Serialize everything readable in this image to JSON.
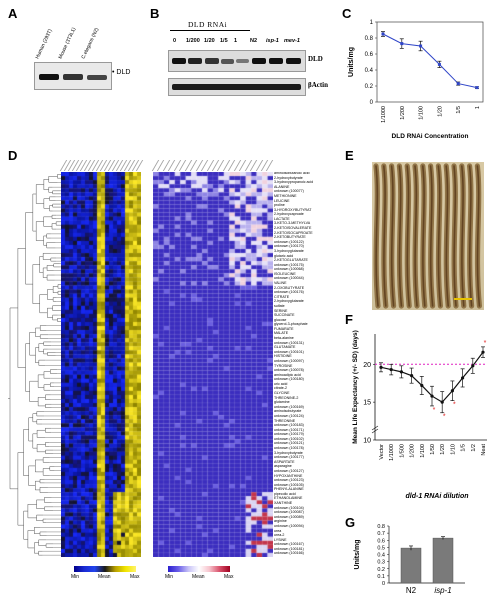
{
  "panels": {
    "a": "A",
    "b": "B",
    "c": "C",
    "d": "D",
    "e": "E",
    "f": "F",
    "g": "G"
  },
  "panel_a": {
    "lanes": [
      "Human (293T)",
      "Mouse (3T3L1)",
      "C.elegans (N2)"
    ],
    "band_label": "• DLD"
  },
  "panel_b": {
    "header": "DLD RNAi",
    "lanes": [
      "0",
      "1/200",
      "1/20",
      "1/5",
      "1",
      "N2",
      "isp-1",
      "mev-1"
    ],
    "labels": {
      "top": "DLD",
      "bottom": "βActin"
    }
  },
  "panel_e": {
    "scale_label": "—"
  },
  "panel_d": {
    "legend_left": {
      "min": "Min",
      "mean": "Mean",
      "max": "Max"
    },
    "legend_right": {
      "min": "Min",
      "mean": "Mean",
      "max": "Max"
    },
    "metabolites": [
      "aminoisobutanoic acid",
      "2-hydroxybutyrate",
      "3-hydroxypropanoic acid",
      "ALANINE",
      "unknown (100077)",
      "METHIONINE",
      "LEUCINE",
      "proline",
      "3-HYDROXYBUTYRAT",
      "2-hydroxycaproate",
      "LACTATE",
      "3-KETO-3-METHYLVA",
      "2-KETOISOVALERATE",
      "2-KETOISOCAPROATE",
      "2-KETOBUTYRATE",
      "unknown (100122)",
      "unknown (100170)",
      "3-hydroxyglutarate",
      "glutaric acid",
      "2-KETOGLUTARATE",
      "unknown (100175)",
      "unknown (100068)",
      "ISOLEUCINE",
      "unknown (100044)",
      "VALINE",
      "2-OXOBUTYRATE",
      "unknown (100176)",
      "CITRATE",
      "2-hydroxyglutarate",
      "sulfate",
      "SERINE",
      "SUCCINATE",
      "glucose",
      "glycerol-3-phosphate",
      "FUMARATE",
      "MALATE",
      "beta-alanine",
      "unknown (100131)",
      "GLUTAMATE",
      "unknown (100101)",
      "HISTIDINE",
      "unknown (100097)",
      "TYROSINE",
      "unknown (100078)",
      "aminoadipic acid",
      "unknown (100180)",
      "uric acid",
      "citrate-2",
      "GLYCINE",
      "THREONINE-2",
      "glutamine",
      "unknown (100169)",
      "aminoisobutyrate",
      "unknown (100124)",
      "THREONINE",
      "unknown (100183)",
      "unknown (100171)",
      "unknown (100179)",
      "unknown (100102)",
      "unknown (100121)",
      "unknown (100178)",
      "3-hydroxybutyrate",
      "unknown (100177)",
      "ASPARTATE",
      "asparagine",
      "unknown (100127)",
      "HYPOXANTHINE",
      "unknown (100123)",
      "unknown (100105)",
      "PHENYLALANINE",
      "pipecolic acid",
      "ETHANOLAMINE",
      "XANTHINE",
      "unknown (100104)",
      "unknown (100087)",
      "unknown (100089)",
      "arginine",
      "unknown (100094)",
      "urea",
      "urea-2",
      "LYSINE",
      "unknown (100167)",
      "unknown (100181)",
      "unknown (100166)"
    ]
  },
  "chart_data": [
    {
      "panel": "C",
      "type": "line",
      "ylabel": "Units/mg",
      "xlabel": "DLD RNAi Concentration",
      "categories": [
        "1/1000",
        "1/200",
        "1/100",
        "1/20",
        "1/5",
        "1"
      ],
      "values": [
        0.85,
        0.73,
        0.7,
        0.47,
        0.23,
        0.18
      ],
      "errors": [
        0.03,
        0.06,
        0.06,
        0.04,
        0.02,
        0.01
      ],
      "ylim": [
        0,
        1
      ],
      "yticks": [
        "0",
        "0.2",
        "0.4",
        "0.6",
        "0.8",
        "1"
      ],
      "color": "#2f45c8"
    },
    {
      "panel": "F",
      "type": "line",
      "ylabel": "Mean Life Expectancy (+/- SD) (days)",
      "xlabel": "dld-1 RNAi dilution",
      "categories": [
        "Vector",
        "1/1000",
        "1/500",
        "1/200",
        "1/100",
        "1/50",
        "1/20",
        "1/10",
        "1/5",
        "1/2",
        "Neat"
      ],
      "values": [
        19.6,
        19.3,
        19.0,
        18.5,
        17.2,
        15.8,
        15.0,
        16.5,
        18.2,
        19.8,
        21.6
      ],
      "errors": [
        0.6,
        0.7,
        0.8,
        1.0,
        1.2,
        1.3,
        1.4,
        1.3,
        1.2,
        1.0,
        0.7
      ],
      "ylim": [
        10,
        24
      ],
      "yticks": [
        "10",
        "15",
        "20"
      ],
      "reference_line": 20.0,
      "significant": [
        "1/50",
        "1/20",
        "1/10",
        "Neat"
      ],
      "color": "#111111"
    },
    {
      "panel": "G",
      "type": "bar",
      "ylabel": "Units/mg",
      "categories": [
        "N2",
        "isp-1"
      ],
      "values": [
        0.49,
        0.63
      ],
      "errors": [
        0.03,
        0.02
      ],
      "ylim": [
        0,
        0.8
      ],
      "yticks": [
        "0",
        "0.1",
        "0.2",
        "0.3",
        "0.4",
        "0.5",
        "0.6",
        "0.7",
        "0.8"
      ],
      "color": "#7a7a7a"
    }
  ]
}
